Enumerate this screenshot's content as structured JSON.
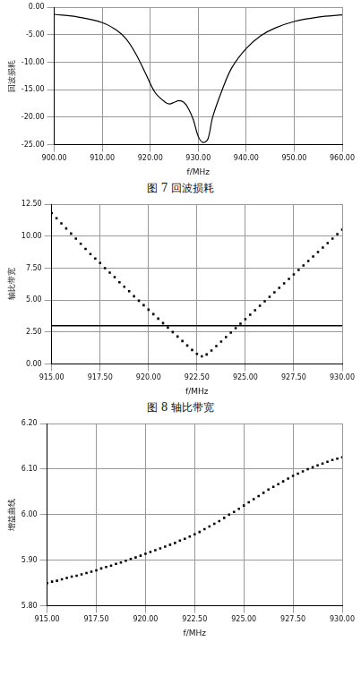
{
  "chart_data": [
    {
      "type": "line",
      "title": "图 7 回波损耗",
      "x_label": "f/MHz",
      "y_label": "回波损耗",
      "x": [
        900,
        905,
        910,
        913,
        915,
        917,
        919,
        921,
        923,
        924,
        925,
        926,
        927,
        928,
        929,
        930,
        931,
        932,
        933,
        935,
        937,
        940,
        943,
        946,
        950,
        955,
        960
      ],
      "values": [
        -1.3,
        -1.8,
        -2.8,
        -4.2,
        -5.8,
        -8.5,
        -12,
        -15.5,
        -17.2,
        -17.6,
        -17.3,
        -17.0,
        -17.3,
        -18.5,
        -20.5,
        -23.5,
        -24.6,
        -24,
        -20,
        -15,
        -11,
        -7.5,
        -5.2,
        -3.8,
        -2.6,
        -1.8,
        -1.4
      ],
      "color": "#000000",
      "marker": "none",
      "line_style": "solid",
      "grid": true,
      "xlim": [
        900,
        960
      ],
      "xticks": [
        {
          "value": 900,
          "label": "900.00"
        },
        {
          "value": 910,
          "label": "910.00"
        },
        {
          "value": 920,
          "label": "920.00"
        },
        {
          "value": 930,
          "label": "930.00"
        },
        {
          "value": 940,
          "label": "940.00"
        },
        {
          "value": 950,
          "label": "950.00"
        },
        {
          "value": 960,
          "label": "960.00"
        }
      ],
      "ylim": [
        -25,
        0
      ],
      "yticks": [
        {
          "value": -25,
          "label": "-25.00"
        },
        {
          "value": -20,
          "label": "-20.00"
        },
        {
          "value": -15,
          "label": "-15.00"
        },
        {
          "value": -10,
          "label": "-10.00"
        },
        {
          "value": -5,
          "label": "-5.00"
        },
        {
          "value": 0,
          "label": "0.00"
        }
      ]
    },
    {
      "type": "scatter",
      "title": "图 8 轴比带宽",
      "x_label": "f/MHz",
      "y_label": "轴比带宽",
      "x": [
        915,
        915.25,
        915.5,
        915.75,
        916,
        916.25,
        916.5,
        916.75,
        917,
        917.25,
        917.5,
        917.75,
        918,
        918.25,
        918.5,
        918.75,
        919,
        919.25,
        919.5,
        919.75,
        920,
        920.25,
        920.5,
        920.75,
        921,
        921.25,
        921.5,
        921.75,
        922,
        922.25,
        922.5,
        922.75,
        923,
        923.25,
        923.5,
        923.75,
        924,
        924.25,
        924.5,
        924.75,
        925,
        925.25,
        925.5,
        925.75,
        926,
        926.25,
        926.5,
        926.75,
        927,
        927.25,
        927.5,
        927.75,
        928,
        928.25,
        928.5,
        928.75,
        929,
        929.25,
        929.5,
        929.75,
        930
      ],
      "values": [
        11.8,
        11.4,
        11.0,
        10.6,
        10.2,
        9.8,
        9.4,
        9.0,
        8.6,
        8.25,
        7.9,
        7.5,
        7.15,
        6.8,
        6.4,
        6.05,
        5.7,
        5.3,
        4.95,
        4.6,
        4.25,
        3.9,
        3.55,
        3.2,
        2.85,
        2.5,
        2.15,
        1.8,
        1.45,
        1.1,
        0.8,
        0.6,
        0.75,
        1.05,
        1.4,
        1.75,
        2.1,
        2.45,
        2.8,
        3.15,
        3.5,
        3.85,
        4.2,
        4.55,
        4.9,
        5.25,
        5.6,
        5.95,
        6.3,
        6.65,
        7.0,
        7.35,
        7.7,
        8.05,
        8.4,
        8.75,
        9.1,
        9.45,
        9.8,
        10.15,
        10.5
      ],
      "reference_line": 3,
      "color": "#000000",
      "marker": "square",
      "grid": true,
      "xlim": [
        915,
        930
      ],
      "xticks": [
        {
          "value": 915,
          "label": "915.00"
        },
        {
          "value": 917.5,
          "label": "917.50"
        },
        {
          "value": 920,
          "label": "920.00"
        },
        {
          "value": 922.5,
          "label": "922.50"
        },
        {
          "value": 925,
          "label": "925.00"
        },
        {
          "value": 927.5,
          "label": "927.50"
        },
        {
          "value": 930,
          "label": "930.00"
        }
      ],
      "ylim": [
        0,
        12.5
      ],
      "yticks": [
        {
          "value": 0,
          "label": "0.00"
        },
        {
          "value": 2.5,
          "label": "2.50"
        },
        {
          "value": 5,
          "label": "5.00"
        },
        {
          "value": 7.5,
          "label": "7.50"
        },
        {
          "value": 10,
          "label": "10.00"
        },
        {
          "value": 12.5,
          "label": "12.50"
        }
      ]
    },
    {
      "type": "scatter",
      "x_label": "f/MHz",
      "y_label": "增益曲线",
      "x": [
        915,
        915.25,
        915.5,
        915.75,
        916,
        916.25,
        916.5,
        916.75,
        917,
        917.25,
        917.5,
        917.75,
        918,
        918.25,
        918.5,
        918.75,
        919,
        919.25,
        919.5,
        919.75,
        920,
        920.25,
        920.5,
        920.75,
        921,
        921.25,
        921.5,
        921.75,
        922,
        922.25,
        922.5,
        922.75,
        923,
        923.25,
        923.5,
        923.75,
        924,
        924.25,
        924.5,
        924.75,
        925,
        925.25,
        925.5,
        925.75,
        926,
        926.25,
        926.5,
        926.75,
        927,
        927.25,
        927.5,
        927.75,
        928,
        928.25,
        928.5,
        928.75,
        929,
        929.25,
        929.5,
        929.75,
        930
      ],
      "values": [
        5.85,
        5.853,
        5.855,
        5.858,
        5.861,
        5.864,
        5.866,
        5.869,
        5.872,
        5.875,
        5.878,
        5.882,
        5.885,
        5.888,
        5.892,
        5.895,
        5.899,
        5.903,
        5.906,
        5.91,
        5.914,
        5.918,
        5.922,
        5.926,
        5.93,
        5.934,
        5.938,
        5.943,
        5.947,
        5.952,
        5.957,
        5.962,
        5.968,
        5.974,
        5.98,
        5.986,
        5.993,
        6.0,
        6.006,
        6.013,
        6.02,
        6.027,
        6.034,
        6.041,
        6.048,
        6.055,
        6.061,
        6.067,
        6.073,
        6.079,
        6.085,
        6.09,
        6.095,
        6.1,
        6.104,
        6.108,
        6.112,
        6.116,
        6.12,
        6.123,
        6.126
      ],
      "color": "#000000",
      "marker": "square",
      "grid": true,
      "xlim": [
        915,
        930
      ],
      "xticks": [
        {
          "value": 915,
          "label": "915.00"
        },
        {
          "value": 917.5,
          "label": "917.50"
        },
        {
          "value": 920,
          "label": "920.00"
        },
        {
          "value": 922.5,
          "label": "922.50"
        },
        {
          "value": 925,
          "label": "925.00"
        },
        {
          "value": 927.5,
          "label": "927.50"
        },
        {
          "value": 930,
          "label": "930.00"
        }
      ],
      "ylim": [
        5.8,
        6.2
      ],
      "yticks": [
        {
          "value": 5.8,
          "label": "5.80"
        },
        {
          "value": 5.9,
          "label": "5.90"
        },
        {
          "value": 6.0,
          "label": "6.00"
        },
        {
          "value": 6.1,
          "label": "6.10"
        },
        {
          "value": 6.2,
          "label": "6.20"
        }
      ]
    }
  ]
}
